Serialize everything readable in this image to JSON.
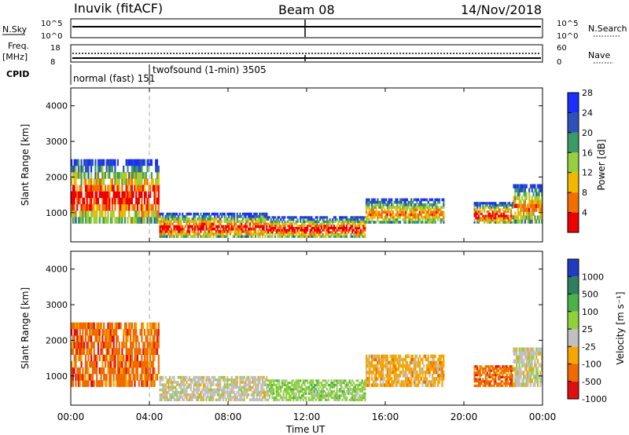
{
  "header": {
    "site": "Inuvik (fitACF)",
    "beam": "Beam 08",
    "date": "14/Nov/2018"
  },
  "strips": {
    "nsky_label": "N.Sky",
    "nsky_ticks": [
      "10^5",
      "10^0"
    ],
    "nsearch_label": "N.Search",
    "freq_label": "Freq.",
    "freq_unit": "[MHz]",
    "freq_ticks": [
      "18",
      "8"
    ],
    "nave_label": "Nave",
    "nave_ticks": [
      "60",
      "0"
    ],
    "cpid_label": "CPID",
    "cpid_1": "normal (fast) 151",
    "cpid_2": "twofsound (1-min) 3505"
  },
  "chart_data": [
    {
      "type": "heatmap",
      "title": "",
      "xlabel": "",
      "ylabel": "Slant Range [km]",
      "yticks": [
        "1000",
        "2000",
        "3000",
        "4000"
      ],
      "ylim": [
        180,
        4500
      ],
      "colorbar_label": "Power [dB]",
      "colorbar_ticks": [
        "4",
        "8",
        "12",
        "16",
        "20",
        "24",
        "28"
      ],
      "colorbar_colors": [
        "#1a2eff",
        "#2a52b8",
        "#3c9a66",
        "#97cf3f",
        "#f2b800",
        "#f36e00",
        "#ee0000"
      ],
      "echo_regions_hours_km": [
        {
          "t": [
            0.0,
            4.5
          ],
          "r": [
            700,
            2500
          ],
          "level": "high"
        },
        {
          "t": [
            4.5,
            10.0
          ],
          "r": [
            300,
            1000
          ],
          "level": "high"
        },
        {
          "t": [
            10.0,
            15.0
          ],
          "r": [
            300,
            900
          ],
          "level": "high"
        },
        {
          "t": [
            15.0,
            19.0
          ],
          "r": [
            700,
            1400
          ],
          "level": "medium"
        },
        {
          "t": [
            20.5,
            22.5
          ],
          "r": [
            700,
            1300
          ],
          "level": "high"
        },
        {
          "t": [
            22.5,
            24.0
          ],
          "r": [
            700,
            1800
          ],
          "level": "medium"
        }
      ]
    },
    {
      "type": "heatmap",
      "title": "",
      "xlabel": "Time UT",
      "ylabel": "Slant Range [km]",
      "xticks": [
        "00:00",
        "04:00",
        "08:00",
        "12:00",
        "16:00",
        "20:00",
        "00:00"
      ],
      "yticks": [
        "1000",
        "2000",
        "3000",
        "4000"
      ],
      "ylim": [
        180,
        4500
      ],
      "colorbar_label": "Velocity [m s⁻¹]",
      "colorbar_ticks": [
        "1000",
        "500",
        "100",
        "25",
        "-25",
        "-100",
        "-500",
        "-1000"
      ],
      "colorbar_colors": [
        "#1f3bbf",
        "#2f7e62",
        "#4bb24b",
        "#8fd13b",
        "#c0c0c0",
        "#f5a600",
        "#ef6a00",
        "#e01010"
      ],
      "echo_regions_hours_km": [
        {
          "t": [
            0.0,
            4.5
          ],
          "r": [
            700,
            2500
          ],
          "velocity": "-500"
        },
        {
          "t": [
            4.5,
            10.0
          ],
          "r": [
            300,
            1000
          ],
          "velocity": "25"
        },
        {
          "t": [
            10.0,
            15.0
          ],
          "r": [
            300,
            900
          ],
          "velocity": "100"
        },
        {
          "t": [
            15.0,
            19.0
          ],
          "r": [
            700,
            1600
          ],
          "velocity": "-100"
        },
        {
          "t": [
            20.5,
            22.5
          ],
          "r": [
            700,
            1300
          ],
          "velocity": "-500"
        },
        {
          "t": [
            22.5,
            24.0
          ],
          "r": [
            700,
            1800
          ],
          "velocity": "25"
        }
      ]
    }
  ]
}
